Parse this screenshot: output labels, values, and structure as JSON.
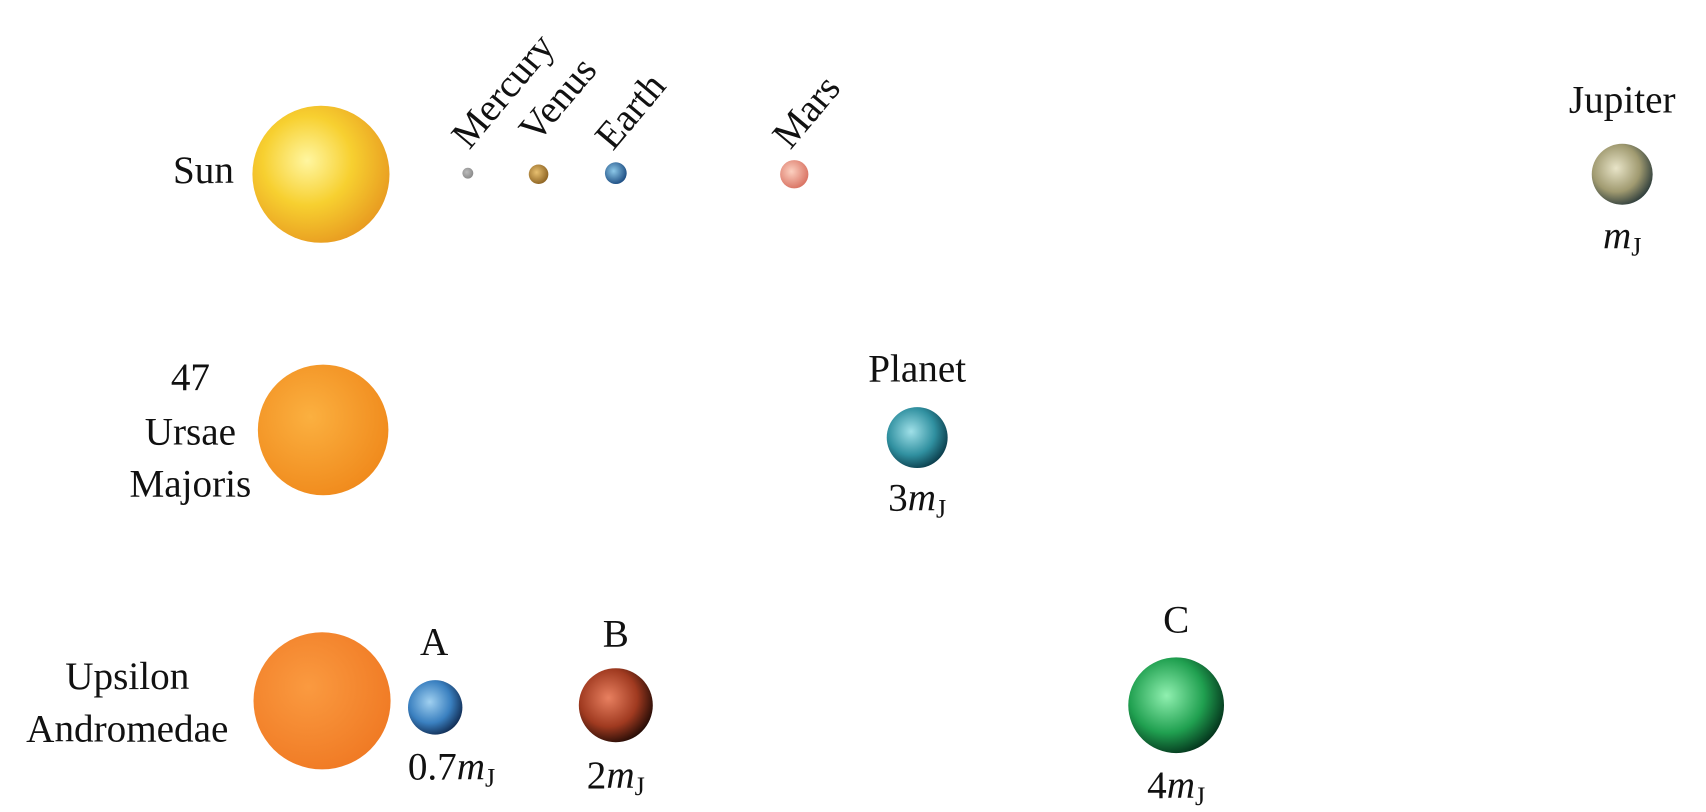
{
  "systems": [
    {
      "star": {
        "label": [
          "Sun"
        ]
      },
      "planets": [
        {
          "name": "Mercury"
        },
        {
          "name": "Venus"
        },
        {
          "name": "Earth"
        },
        {
          "name": "Mars"
        },
        {
          "name": "Jupiter",
          "mass": {
            "symbol": "m",
            "subscript": "J"
          }
        }
      ]
    },
    {
      "star": {
        "label": [
          "47",
          "Ursae",
          "Majoris"
        ]
      },
      "planets": [
        {
          "name": "Planet",
          "mass": {
            "coefficient": "3",
            "symbol": "m",
            "subscript": "J"
          }
        }
      ]
    },
    {
      "star": {
        "label": [
          "Upsilon",
          "Andromedae"
        ]
      },
      "planets": [
        {
          "name": "A",
          "mass": {
            "coefficient": "0.7",
            "symbol": "m",
            "subscript": "J"
          }
        },
        {
          "name": "B",
          "mass": {
            "coefficient": "2",
            "symbol": "m",
            "subscript": "J"
          }
        },
        {
          "name": "C",
          "mass": {
            "coefficient": "4",
            "symbol": "m",
            "subscript": "J"
          }
        }
      ]
    }
  ]
}
